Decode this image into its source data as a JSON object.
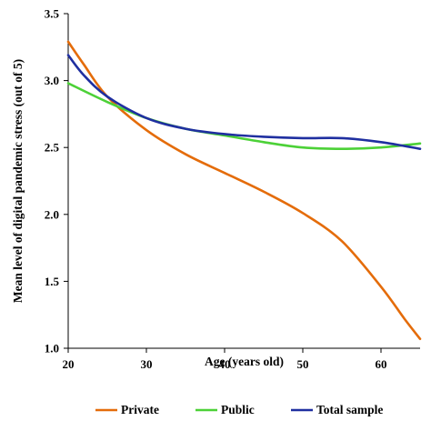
{
  "chart_data": {
    "type": "line",
    "xlabel": "Age (years old)",
    "ylabel": "Mean level of digital pandemic stress (out of 5)",
    "xlim": [
      20,
      65
    ],
    "ylim": [
      1.0,
      3.5
    ],
    "x_ticks": [
      20,
      30,
      40,
      50,
      60
    ],
    "y_ticks": [
      1.0,
      1.5,
      2.0,
      2.5,
      3.0,
      3.5
    ],
    "y_tick_labels": [
      "1.0",
      "1.5",
      "2.0",
      "2.5",
      "3.0",
      "3.5"
    ],
    "grid": false,
    "legend_position": "bottom",
    "series": [
      {
        "name": "Private",
        "color": "#e46c0a",
        "x": [
          20,
          22,
          25,
          30,
          35,
          40,
          45,
          50,
          55,
          60,
          63,
          65
        ],
        "y": [
          3.29,
          3.12,
          2.88,
          2.63,
          2.45,
          2.31,
          2.17,
          2.01,
          1.8,
          1.46,
          1.22,
          1.07
        ]
      },
      {
        "name": "Public",
        "color": "#4cd137",
        "x": [
          20,
          25,
          30,
          35,
          40,
          45,
          50,
          55,
          60,
          65
        ],
        "y": [
          2.98,
          2.84,
          2.72,
          2.64,
          2.59,
          2.54,
          2.5,
          2.49,
          2.5,
          2.53
        ]
      },
      {
        "name": "Total sample",
        "color": "#1f2fa0",
        "x": [
          20,
          22,
          25,
          30,
          35,
          40,
          45,
          50,
          55,
          60,
          65
        ],
        "y": [
          3.19,
          3.04,
          2.88,
          2.72,
          2.64,
          2.6,
          2.58,
          2.57,
          2.57,
          2.54,
          2.49
        ]
      }
    ]
  }
}
